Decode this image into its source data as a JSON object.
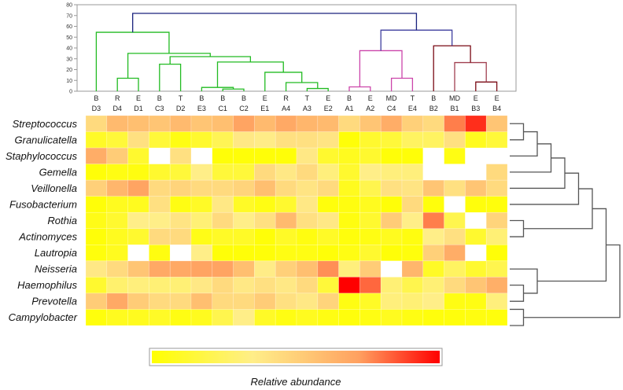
{
  "chart_data": {
    "type": "heatmap",
    "title": "",
    "legend_title": "Relative abundance",
    "legend_placement": "bottom",
    "colorscale": [
      "#FFFF00",
      "#FFEE88",
      "#FFCC77",
      "#FFA060",
      "#FF0000"
    ],
    "missing_color": "#FFFFFF",
    "value_range": [
      0,
      1
    ],
    "columns": [
      {
        "group": "B",
        "id": "D3"
      },
      {
        "group": "R",
        "id": "D4"
      },
      {
        "group": "E",
        "id": "D1"
      },
      {
        "group": "B",
        "id": "C3"
      },
      {
        "group": "T",
        "id": "D2"
      },
      {
        "group": "B",
        "id": "E3"
      },
      {
        "group": "B",
        "id": "C1"
      },
      {
        "group": "B",
        "id": "C2"
      },
      {
        "group": "E",
        "id": "E1"
      },
      {
        "group": "R",
        "id": "A4"
      },
      {
        "group": "T",
        "id": "A3"
      },
      {
        "group": "E",
        "id": "E2"
      },
      {
        "group": "B",
        "id": "A1"
      },
      {
        "group": "E",
        "id": "A2"
      },
      {
        "group": "MD",
        "id": "C4"
      },
      {
        "group": "T",
        "id": "E4"
      },
      {
        "group": "B",
        "id": "B2"
      },
      {
        "group": "MD",
        "id": "B1"
      },
      {
        "group": "E",
        "id": "B3"
      },
      {
        "group": "E",
        "id": "B4"
      }
    ],
    "rows": [
      "Streptococcus",
      "Granulicatella",
      "Staphylococcus",
      "Gemella",
      "Veillonella",
      "Fusobacterium",
      "Rothia",
      "Actinomyces",
      "Lautropia",
      "Neisseria",
      "Haemophilus",
      "Prevotella",
      "Campylobacter"
    ],
    "values": [
      [
        0.45,
        0.6,
        0.58,
        0.55,
        0.6,
        0.55,
        0.58,
        0.7,
        0.6,
        0.68,
        0.62,
        0.6,
        0.45,
        0.55,
        0.66,
        0.5,
        0.45,
        0.78,
        0.92,
        0.55
      ],
      [
        0.1,
        0.15,
        0.42,
        0.15,
        0.05,
        0.12,
        0.22,
        0.38,
        0.36,
        0.42,
        0.42,
        0.4,
        0.02,
        0.12,
        0.15,
        0.25,
        0.25,
        0.42,
        0.08,
        0.15
      ],
      [
        0.66,
        0.52,
        0.12,
        null,
        0.42,
        null,
        0.02,
        0.02,
        0.02,
        0.02,
        0.38,
        0.12,
        0.08,
        0.12,
        0.02,
        0.02,
        null,
        0.05,
        null,
        null
      ],
      [
        0.02,
        0.05,
        0.04,
        0.12,
        0.15,
        0.35,
        0.15,
        0.15,
        0.45,
        0.38,
        0.45,
        0.32,
        0.12,
        0.35,
        0.32,
        0.32,
        null,
        null,
        null,
        0.45
      ],
      [
        0.5,
        0.62,
        0.7,
        0.45,
        0.48,
        0.45,
        0.45,
        0.48,
        0.58,
        0.45,
        0.4,
        0.45,
        0.08,
        0.2,
        0.42,
        0.4,
        0.55,
        0.42,
        0.55,
        0.45
      ],
      [
        0.02,
        0.08,
        0.08,
        0.42,
        0.05,
        0.1,
        0.38,
        0.1,
        0.05,
        0.12,
        0.38,
        0.03,
        0.04,
        0.08,
        0.02,
        0.45,
        0.03,
        null,
        0.03,
        0.03
      ],
      [
        0.06,
        0.12,
        0.35,
        0.35,
        0.4,
        0.3,
        0.45,
        0.35,
        0.42,
        0.6,
        0.42,
        0.38,
        0.04,
        0.12,
        0.52,
        0.35,
        0.78,
        0.2,
        null,
        0.48
      ],
      [
        0.02,
        0.08,
        0.12,
        0.45,
        0.45,
        0.06,
        0.1,
        0.1,
        0.02,
        0.1,
        0.04,
        0.1,
        0.03,
        0.05,
        0.08,
        0.04,
        0.35,
        0.42,
        0.12,
        0.3
      ],
      [
        0.03,
        0.08,
        null,
        0.04,
        null,
        0.35,
        0.02,
        0.02,
        0.02,
        0.05,
        0.05,
        0.02,
        0.05,
        0.12,
        0.02,
        0.03,
        0.5,
        0.66,
        null,
        0.02
      ],
      [
        0.38,
        0.45,
        0.55,
        0.68,
        0.68,
        0.7,
        0.7,
        0.58,
        0.36,
        0.5,
        0.58,
        0.75,
        0.32,
        0.52,
        null,
        0.62,
        0.1,
        0.25,
        0.12,
        0.2
      ],
      [
        0.12,
        0.28,
        0.32,
        0.3,
        0.3,
        0.38,
        0.45,
        0.38,
        0.42,
        0.38,
        0.45,
        0.15,
        1.0,
        0.82,
        0.3,
        0.2,
        0.3,
        0.45,
        0.55,
        0.65
      ],
      [
        0.52,
        0.68,
        0.52,
        0.45,
        0.45,
        0.58,
        0.45,
        0.45,
        0.52,
        0.42,
        0.38,
        0.48,
        0.05,
        0.1,
        0.32,
        0.3,
        0.35,
        0.05,
        0.05,
        0.32
      ],
      [
        0.03,
        0.08,
        0.08,
        0.1,
        0.05,
        0.08,
        0.2,
        0.35,
        0.1,
        0.05,
        0.08,
        0.05,
        0.03,
        0.05,
        0.08,
        0.05,
        0.03,
        0.03,
        0.04,
        0.03
      ]
    ],
    "column_dendrogram": {
      "ylim": [
        0,
        80
      ],
      "yticks": [
        "0",
        "10",
        "20",
        "30",
        "40",
        "50",
        "60",
        "70",
        "80"
      ],
      "cluster_colors": {
        "root": "#1A237E",
        "upper_right": "#3F3F9F",
        "green": "#22BB22",
        "pink": "#CC44AA",
        "maroon": "#7A0A14",
        "maroon_light": "#A04050"
      },
      "merges": [
        {
          "a": 7,
          "b": 8,
          "h": 2,
          "color": "green"
        },
        {
          "a": 6,
          "b": "m0",
          "h": 3.5,
          "color": "green"
        },
        {
          "a": 11,
          "b": 12,
          "h": 2.5,
          "color": "green"
        },
        {
          "a": 10,
          "b": "m2",
          "h": 8,
          "color": "green"
        },
        {
          "a": 9,
          "b": "m3",
          "h": 17.5,
          "color": "green"
        },
        {
          "a": "m1",
          "b": "m4",
          "h": 27,
          "color": "green"
        },
        {
          "a": 4,
          "b": 5,
          "h": 25,
          "color": "green"
        },
        {
          "a": "m6",
          "b": "m5",
          "h": 32,
          "color": "green"
        },
        {
          "a": 2,
          "b": 3,
          "h": 12,
          "color": "green"
        },
        {
          "a": "m8",
          "b": "m7",
          "h": 35,
          "color": "green"
        },
        {
          "a": 1,
          "b": "m9",
          "h": 54.5,
          "color": "green"
        },
        {
          "a": 13,
          "b": 14,
          "h": 4,
          "color": "pink"
        },
        {
          "a": 15,
          "b": 16,
          "h": 12,
          "color": "pink"
        },
        {
          "a": "m11",
          "b": "m12",
          "h": 37.5,
          "color": "pink"
        },
        {
          "a": 19,
          "b": 20,
          "h": 8.5,
          "color": "maroon"
        },
        {
          "a": 18,
          "b": "m14",
          "h": 26.5,
          "color": "maroon_light"
        },
        {
          "a": 17,
          "b": "m15",
          "h": 42,
          "color": "maroon"
        },
        {
          "a": "m13",
          "b": "m16",
          "h": 56.5,
          "color": "upper_right"
        },
        {
          "a": "m10",
          "b": "m17",
          "h": 72,
          "color": "root"
        }
      ]
    },
    "row_dendrogram": {
      "color": "#555555",
      "merges": [
        {
          "a": 1,
          "b": 2,
          "h": 1
        },
        {
          "a": "m0",
          "b": 3,
          "h": 2
        },
        {
          "a": "m1",
          "b": 4,
          "h": 3
        },
        {
          "a": "m2",
          "b": 5,
          "h": 4
        },
        {
          "a": "m3",
          "b": 6,
          "h": 5
        },
        {
          "a": 7,
          "b": 8,
          "h": 1
        },
        {
          "a": "m4",
          "b": "m5",
          "h": 6
        },
        {
          "a": 11,
          "b": 12,
          "h": 1
        },
        {
          "a": 10,
          "b": "m7",
          "h": 2
        },
        {
          "a": "m6",
          "b": "m8",
          "h": 7
        },
        {
          "a": 12.5,
          "b": 13.5,
          "h": 1
        },
        {
          "a": "m9",
          "b": "m10",
          "h": 8
        }
      ]
    }
  }
}
